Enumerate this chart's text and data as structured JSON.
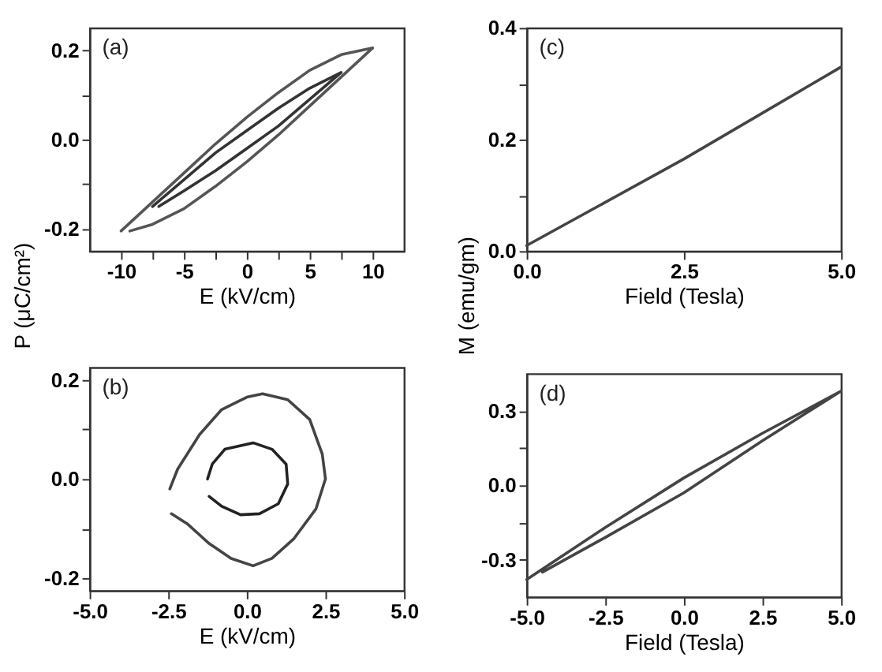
{
  "chart_data": [
    {
      "type": "line",
      "xlabel": "E (kV/cm)",
      "ylabel": "P (μC/cm²)",
      "annotations": [
        "(a)"
      ],
      "xlim": [
        -12.5,
        12.5
      ],
      "ylim": [
        -0.25,
        0.25
      ],
      "xticks": [
        -10,
        {
          "value": -7.5,
          "label": null
        },
        -5,
        {
          "value": -2.5,
          "label": null
        },
        0,
        {
          "value": 2.5,
          "label": null
        },
        5,
        {
          "value": 7.5,
          "label": null
        },
        10
      ],
      "yticks": [
        -0.2,
        {
          "value": -0.1,
          "label": null
        },
        {
          "value": 0,
          "label": "0.0"
        },
        {
          "value": 0.1,
          "label": null
        },
        0.2
      ],
      "series": [
        {
          "color": "#555555",
          "x": [
            -10,
            -7.5,
            -5,
            -2.5,
            0,
            2.5,
            5,
            7.5,
            10,
            7.5,
            5,
            2.5,
            0,
            -2.5,
            -5,
            -7.5,
            -9.3
          ],
          "values": [
            -0.205,
            -0.14,
            -0.075,
            -0.01,
            0.05,
            0.105,
            0.155,
            0.19,
            0.205,
            0.14,
            0.075,
            0.01,
            -0.05,
            -0.105,
            -0.155,
            -0.19,
            -0.205
          ]
        },
        {
          "color": "#333333",
          "x": [
            -7.5,
            -5,
            -2.5,
            0,
            2.5,
            5,
            7.5,
            5,
            2.5,
            0,
            -2.5,
            -5,
            -7
          ],
          "values": [
            -0.15,
            -0.09,
            -0.03,
            0.02,
            0.07,
            0.115,
            0.15,
            0.09,
            0.03,
            -0.02,
            -0.07,
            -0.115,
            -0.15
          ]
        }
      ]
    },
    {
      "type": "line",
      "xlabel": "E (kV/cm)",
      "annotations": [
        "(b)"
      ],
      "xlim": [
        -5,
        5
      ],
      "ylim": [
        -0.225,
        0.225
      ],
      "xticks": [
        {
          "value": -5,
          "label": "-5.0"
        },
        -2.5,
        {
          "value": 0,
          "label": "0.0"
        },
        2.5,
        {
          "value": 5,
          "label": "5.0"
        }
      ],
      "yticks": [
        -0.2,
        {
          "value": -0.1,
          "label": null
        },
        {
          "value": 0,
          "label": "0.0"
        },
        {
          "value": 0.1,
          "label": null
        },
        0.2
      ],
      "series": [
        {
          "color": "#444444",
          "x": [
            -2.45,
            -2.2,
            -1.5,
            -0.8,
            0,
            0.5,
            1.3,
            2.0,
            2.4,
            2.5,
            2.2,
            1.5,
            0.8,
            0.2,
            -0.5,
            -1.2,
            -1.9,
            -2.4
          ],
          "values": [
            -0.02,
            0.02,
            0.09,
            0.14,
            0.165,
            0.172,
            0.16,
            0.12,
            0.05,
            0.0,
            -0.06,
            -0.12,
            -0.16,
            -0.175,
            -0.16,
            -0.13,
            -0.09,
            -0.07
          ]
        },
        {
          "color": "#222222",
          "x": [
            -1.25,
            -1.1,
            -0.7,
            0.2,
            0.8,
            1.25,
            1.3,
            1.0,
            0.4,
            -0.2,
            -0.8,
            -1.2
          ],
          "values": [
            0.0,
            0.03,
            0.06,
            0.073,
            0.06,
            0.03,
            -0.01,
            -0.05,
            -0.07,
            -0.072,
            -0.055,
            -0.035
          ]
        }
      ]
    },
    {
      "type": "line",
      "xlabel": "Field (Tesla)",
      "ylabel": "M (emu/gm)",
      "annotations": [
        "(c)"
      ],
      "xlim": [
        0,
        5
      ],
      "ylim": [
        0,
        0.4
      ],
      "xticks": [
        {
          "value": 0,
          "label": "0.0"
        },
        2.5,
        {
          "value": 5,
          "label": "5.0"
        }
      ],
      "yticks": [
        {
          "value": 0,
          "label": "0.0"
        },
        {
          "value": 0.1,
          "label": null
        },
        0.2,
        {
          "value": 0.3,
          "label": null
        },
        0.4
      ],
      "series": [
        {
          "color": "#444444",
          "x": [
            0,
            2.5,
            5
          ],
          "values": [
            0.01,
            0.165,
            0.33
          ]
        }
      ]
    },
    {
      "type": "line",
      "xlabel": "Field (Tesla)",
      "annotations": [
        "(d)"
      ],
      "xlim": [
        -5,
        5
      ],
      "ylim": [
        -0.45,
        0.45
      ],
      "xticks": [
        {
          "value": -5,
          "label": "-5.0"
        },
        -2.5,
        {
          "value": 0,
          "label": "0.0"
        },
        2.5,
        {
          "value": 5,
          "label": "5.0"
        }
      ],
      "yticks": [
        -0.3,
        {
          "value": -0.15,
          "label": null
        },
        {
          "value": 0,
          "label": "0.0"
        },
        {
          "value": 0.15,
          "label": null
        },
        0.3
      ],
      "series": [
        {
          "color": "#444444",
          "x": [
            -5,
            -2.5,
            0,
            2.5,
            5,
            2.5,
            0,
            -2.5,
            -4.5
          ],
          "values": [
            -0.38,
            -0.17,
            0.03,
            0.21,
            0.38,
            0.18,
            -0.03,
            -0.21,
            -0.35
          ]
        }
      ]
    }
  ]
}
